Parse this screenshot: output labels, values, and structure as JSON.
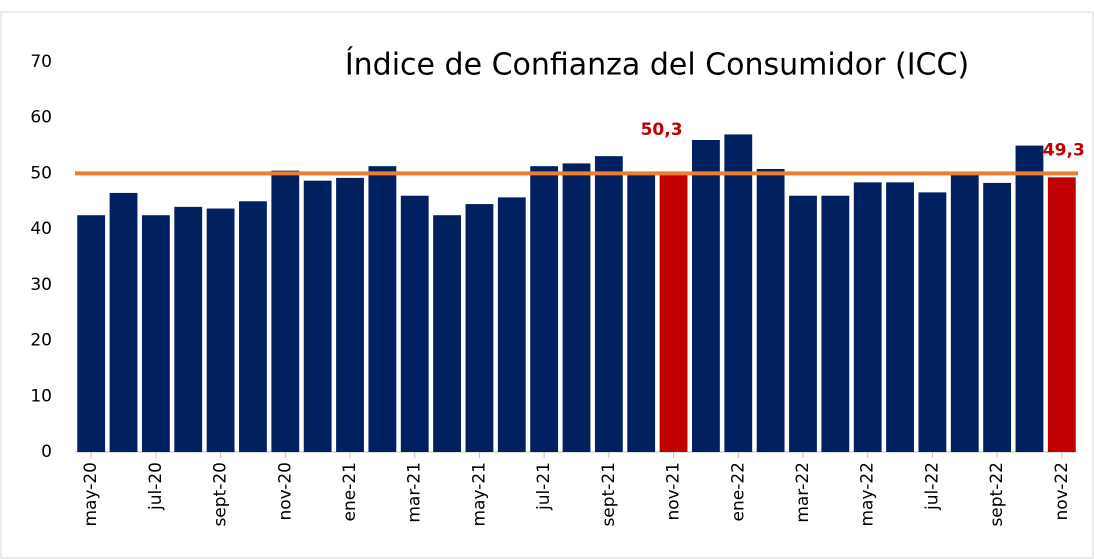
{
  "chart_data": {
    "type": "bar",
    "title": "Índice de Confianza del Consumidor (ICC)",
    "categories": [
      "may-20",
      null,
      "jul-20",
      null,
      "sept-20",
      null,
      "nov-20",
      null,
      "ene-21",
      null,
      "mar-21",
      null,
      "may-21",
      null,
      "jul-21",
      null,
      "sept-21",
      null,
      "nov-21",
      null,
      "ene-22",
      null,
      "mar-22",
      null,
      "may-22",
      null,
      "jul-22",
      null,
      "sept-22",
      null,
      "nov-22"
    ],
    "values": [
      42.5,
      46.5,
      42.5,
      44,
      43.7,
      45,
      50.5,
      48.7,
      49.2,
      51.3,
      46,
      42.5,
      44.5,
      45.7,
      51.3,
      51.8,
      53.1,
      50.3,
      50.3,
      56,
      57,
      50.8,
      46,
      46,
      48.4,
      48.4,
      46.6,
      50.1,
      48.3,
      55,
      49.3
    ],
    "value_labels": [
      null,
      null,
      null,
      null,
      null,
      null,
      null,
      null,
      null,
      null,
      null,
      null,
      null,
      null,
      null,
      null,
      null,
      null,
      "50,3",
      null,
      null,
      null,
      null,
      null,
      null,
      null,
      null,
      null,
      null,
      null,
      "49,3"
    ],
    "colors": [
      "#002060",
      "#002060",
      "#002060",
      "#002060",
      "#002060",
      "#002060",
      "#002060",
      "#002060",
      "#002060",
      "#002060",
      "#002060",
      "#002060",
      "#002060",
      "#002060",
      "#002060",
      "#002060",
      "#002060",
      "#002060",
      "#c00000",
      "#002060",
      "#002060",
      "#002060",
      "#002060",
      "#002060",
      "#002060",
      "#002060",
      "#002060",
      "#002060",
      "#002060",
      "#002060",
      "#c00000"
    ],
    "reference_line": {
      "value": 50,
      "color": "#ed7d31"
    },
    "ylim": [
      0,
      70
    ],
    "yticks": [
      0,
      10,
      20,
      30,
      40,
      50,
      60,
      70
    ],
    "grid": false
  }
}
